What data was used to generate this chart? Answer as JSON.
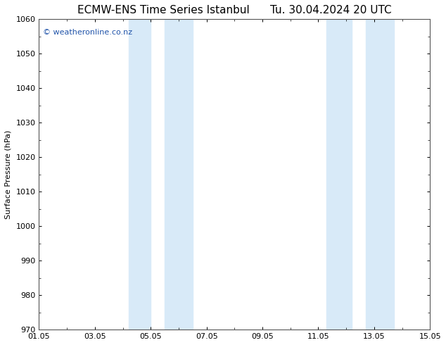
{
  "title": "ECMW-ENS Time Series Istanbul      Tu. 30.04.2024 20 UTC",
  "ylabel": "Surface Pressure (hPa)",
  "ylim": [
    970,
    1060
  ],
  "ytick_step": 10,
  "xlim": [
    0,
    14
  ],
  "xtick_labels": [
    "01.05",
    "03.05",
    "05.05",
    "07.05",
    "09.05",
    "11.05",
    "13.05",
    "15.05"
  ],
  "xtick_positions": [
    0,
    2,
    4,
    6,
    8,
    10,
    12,
    14
  ],
  "shaded_bands": [
    {
      "x_start": 3.2,
      "x_end": 4.0
    },
    {
      "x_start": 4.5,
      "x_end": 5.5
    },
    {
      "x_start": 10.3,
      "x_end": 11.2
    },
    {
      "x_start": 11.7,
      "x_end": 12.7
    }
  ],
  "band_color": "#d8eaf8",
  "background_color": "#ffffff",
  "plot_bg_color": "#ffffff",
  "grid_color": "#dddddd",
  "watermark_text": "© weatheronline.co.nz",
  "watermark_color": "#2255aa",
  "watermark_fontsize": 8,
  "title_fontsize": 11,
  "ylabel_fontsize": 8,
  "tick_fontsize": 8
}
